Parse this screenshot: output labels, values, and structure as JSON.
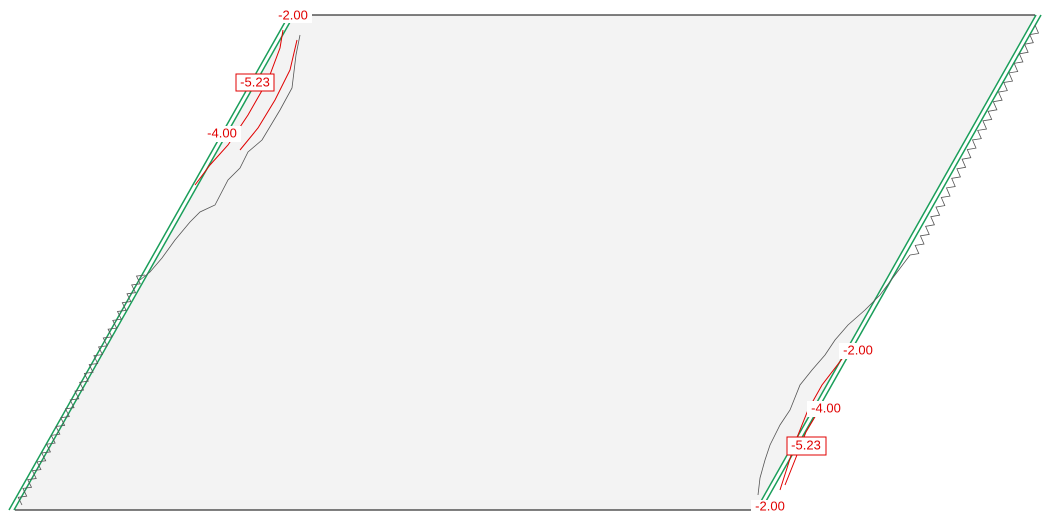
{
  "labels": [
    "-2.00",
    "-5.23",
    "-4.00",
    "-2.00",
    "-4.00",
    "-5.23",
    "-2.00"
  ]
}
